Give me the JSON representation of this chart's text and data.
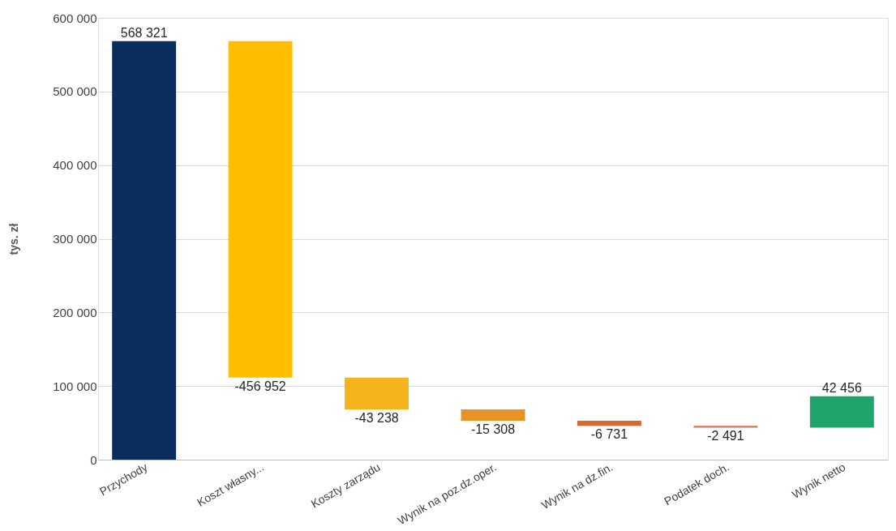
{
  "chart_data": {
    "type": "bar",
    "ylabel": "tys. zł",
    "categories": [
      "Przychody",
      "Koszt własny...",
      "Koszty zarządu",
      "Wynik na poz.dz.oper.",
      "Wynik na dz.fin.",
      "Podatek doch.",
      "Wynik netto"
    ],
    "values": [
      568321,
      -456952,
      -43238,
      -15308,
      -6731,
      -2491,
      42456
    ],
    "base": [
      0,
      568321,
      111369,
      68131,
      52823,
      46092,
      43601
    ],
    "value_labels": [
      "568 321",
      "-456 952",
      "-43 238",
      "-15 308",
      "-6 731",
      "-2 491",
      "42 456"
    ],
    "colors": [
      "#0b2d5e",
      "#ffbf00",
      "#f5b31c",
      "#e8922a",
      "#d9682c",
      "#e5704a",
      "#1fa56b"
    ],
    "ylim": [
      0,
      600000
    ],
    "yticks": [
      {
        "value": 0,
        "label": "0"
      },
      {
        "value": 100000,
        "label": "100 000"
      },
      {
        "value": 200000,
        "label": "200 000"
      },
      {
        "value": 300000,
        "label": "300 000"
      },
      {
        "value": 400000,
        "label": "400 000"
      },
      {
        "value": 500000,
        "label": "500 000"
      },
      {
        "value": 600000,
        "label": "600 000"
      }
    ],
    "grid": "y",
    "legend": false
  }
}
